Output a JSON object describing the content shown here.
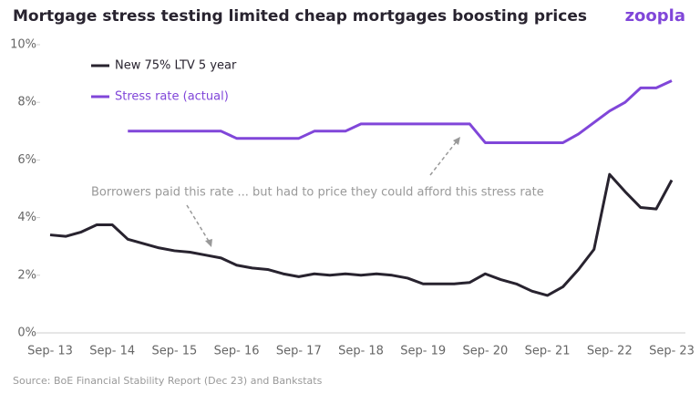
{
  "chart_data": {
    "type": "line",
    "title": "Mortgage stress testing limited cheap mortgages boosting prices",
    "logo": "zoopla",
    "source": "Source: BoE Financial Stability Report (Dec 23) and Bankstats",
    "annotation": "Borrowers paid this rate ... but had to price they could afford this stress rate",
    "categories": [
      "Sep- 13",
      null,
      null,
      null,
      "Sep- 14",
      null,
      null,
      null,
      "Sep- 15",
      null,
      null,
      null,
      "Sep- 16",
      null,
      null,
      null,
      "Sep- 17",
      null,
      null,
      null,
      "Sep- 18",
      null,
      null,
      null,
      "Sep- 19",
      null,
      null,
      null,
      "Sep- 20",
      null,
      null,
      null,
      "Sep- 21",
      null,
      null,
      null,
      "Sep- 22",
      null,
      null,
      null,
      "Sep- 23"
    ],
    "series": [
      {
        "name": "New 75% LTV 5 year",
        "color": "#28232f",
        "values": [
          3.4,
          3.35,
          3.5,
          3.75,
          3.75,
          3.25,
          3.1,
          2.95,
          2.85,
          2.8,
          2.7,
          2.6,
          2.35,
          2.25,
          2.2,
          2.05,
          1.95,
          2.05,
          2.0,
          2.05,
          2.0,
          2.05,
          2.0,
          1.9,
          1.7,
          1.7,
          1.7,
          1.75,
          2.05,
          1.85,
          1.7,
          1.45,
          1.3,
          1.6,
          2.2,
          2.9,
          5.5,
          4.9,
          4.35,
          4.3,
          5.3
        ]
      },
      {
        "name": "Stress rate (actual)",
        "color": "#8046d9",
        "values": [
          null,
          null,
          null,
          null,
          null,
          7.0,
          7.0,
          7.0,
          7.0,
          7.0,
          7.0,
          7.0,
          6.75,
          6.75,
          6.75,
          6.75,
          6.75,
          7.0,
          7.0,
          7.0,
          7.25,
          7.25,
          7.25,
          7.25,
          7.25,
          7.25,
          7.25,
          7.25,
          6.6,
          6.6,
          6.6,
          6.6,
          6.6,
          6.6,
          6.9,
          7.3,
          7.7,
          8.0,
          8.5,
          8.5,
          8.75
        ]
      }
    ],
    "ylim": [
      0,
      10
    ],
    "yticks": [
      {
        "value": 0,
        "label": "0%"
      },
      {
        "value": 2,
        "label": "2%"
      },
      {
        "value": 4,
        "label": "4%"
      },
      {
        "value": 6,
        "label": "6%"
      },
      {
        "value": 8,
        "label": "8%"
      },
      {
        "value": 10,
        "label": "10%"
      }
    ],
    "legend": "upper left"
  }
}
